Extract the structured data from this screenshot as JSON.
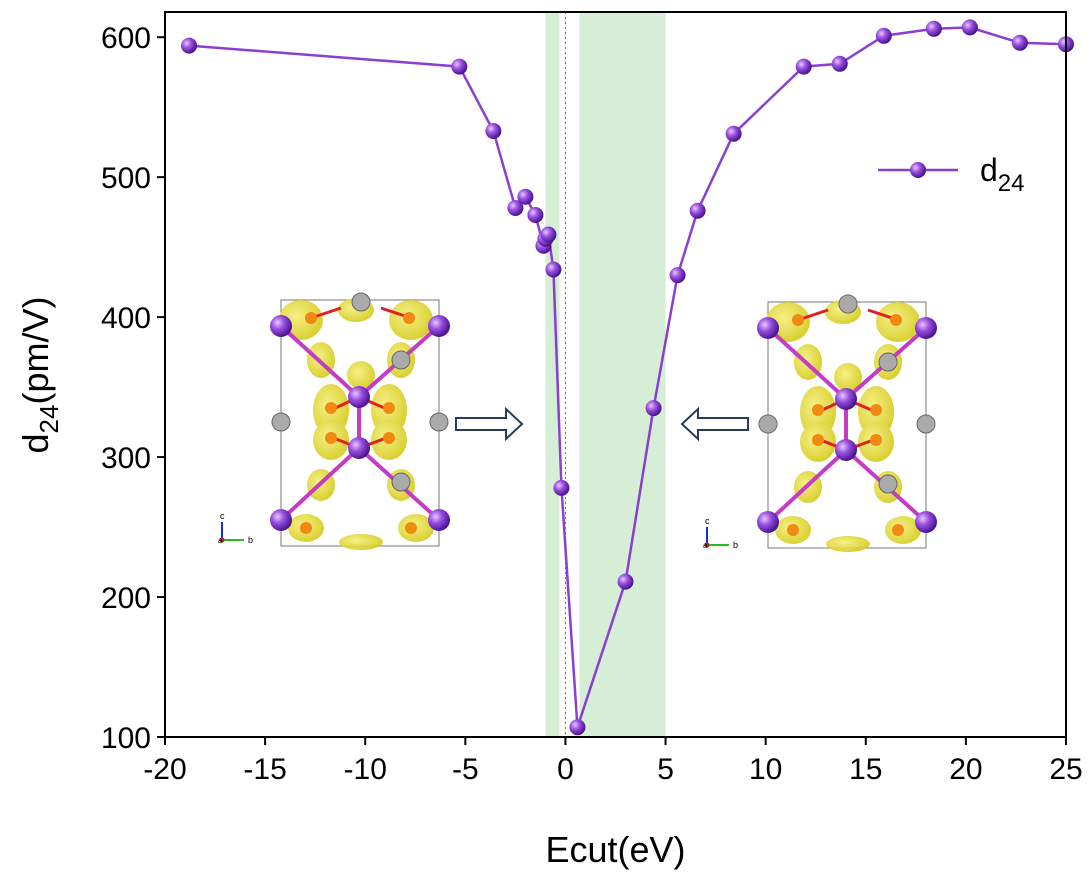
{
  "chart_data": {
    "type": "line",
    "xlabel": "Ecut(eV)",
    "ylabel": "d",
    "ylabel_sub": "24",
    "ylabel_rest": "(pm/V)",
    "x": [
      -18.8,
      -5.3,
      -3.6,
      -2.5,
      -2.0,
      -1.5,
      -1.1,
      -1.0,
      -0.85,
      -0.6,
      -0.2,
      0.6,
      3.0,
      4.4,
      5.6,
      6.6,
      8.4,
      11.9,
      13.7,
      15.9,
      18.4,
      20.2,
      22.7,
      25
    ],
    "series": [
      {
        "name": "d",
        "name_sub": "24",
        "color": "#8a3fd1",
        "values": [
          594,
          579,
          533,
          478,
          486,
          473,
          451,
          456,
          459,
          434,
          278,
          107,
          211,
          335,
          430,
          476,
          531,
          579,
          581,
          601,
          606,
          607,
          596,
          595
        ]
      }
    ],
    "xlim": [
      -20,
      25
    ],
    "ylim": [
      100,
      618
    ],
    "xticks": [
      -20,
      -15,
      -10,
      -5,
      0,
      5,
      10,
      15,
      20,
      25
    ],
    "yticks": [
      100,
      200,
      300,
      400,
      500,
      600
    ],
    "shaded_regions": [
      [
        -1.0,
        -0.3
      ],
      [
        0.7,
        5.0
      ]
    ],
    "shade_color": "#d6eed6",
    "vline": 0,
    "legend": "upper right",
    "inset_axis_labels": [
      "c",
      "a",
      "b"
    ]
  }
}
